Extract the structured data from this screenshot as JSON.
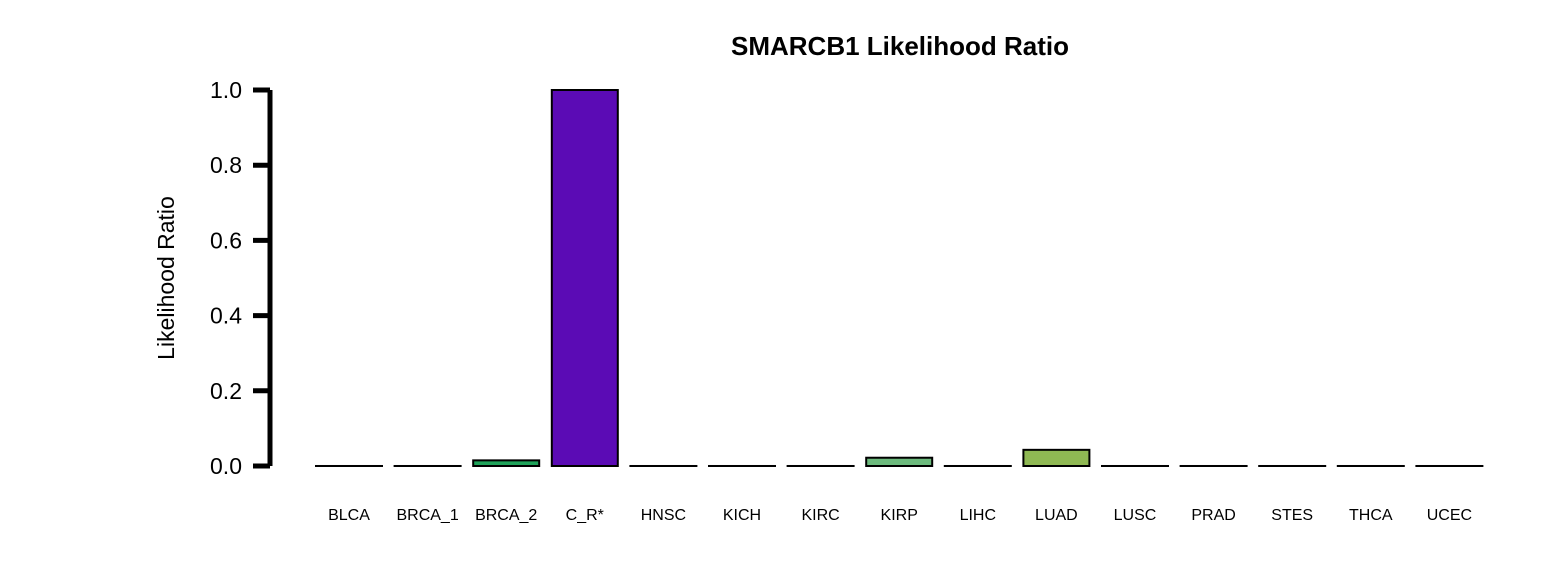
{
  "chart_data": {
    "type": "bar",
    "title": "SMARCB1 Likelihood Ratio",
    "xlabel": "",
    "ylabel": "Likelihood Ratio",
    "ylim": [
      0,
      1.0
    ],
    "yticks": [
      "0.0",
      "0.2",
      "0.4",
      "0.6",
      "0.8",
      "1.0"
    ],
    "grid": false,
    "categories": [
      "BLCA",
      "BRCA_1",
      "BRCA_2",
      "C_R*",
      "HNSC",
      "KICH",
      "KIRC",
      "KIRP",
      "LIHC",
      "LUAD",
      "LUSC",
      "PRAD",
      "STES",
      "THCA",
      "UCEC"
    ],
    "values": [
      0,
      0,
      0.015,
      1.0,
      0,
      0,
      0,
      0.022,
      0,
      0.043,
      0,
      0,
      0,
      0,
      0
    ],
    "colors": [
      "#ffffff",
      "#ffffff",
      "#1fa35a",
      "#5b0bb5",
      "#ffffff",
      "#ffffff",
      "#ffffff",
      "#6cba7d",
      "#ffffff",
      "#8fb853",
      "#ffffff",
      "#ffffff",
      "#ffffff",
      "#ffffff",
      "#ffffff"
    ]
  }
}
